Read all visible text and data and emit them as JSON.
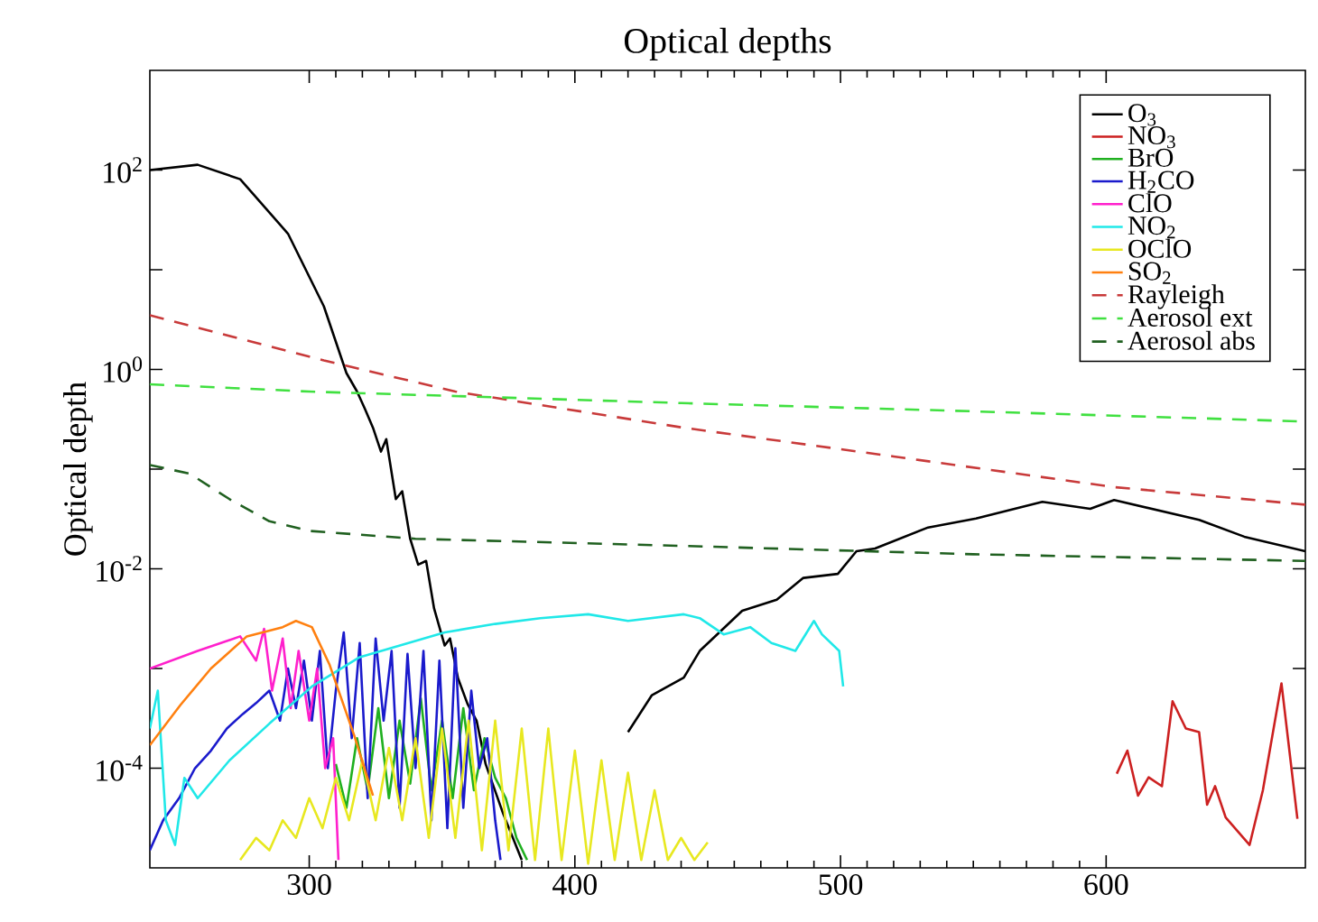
{
  "chart_data": {
    "type": "line",
    "title": "Optical depths",
    "ylabel": "Optical depth",
    "log": "y",
    "xlim": [
      240,
      675
    ],
    "xticks": [
      300,
      400,
      500,
      600
    ],
    "ylim": [
      1e-05,
      1000
    ],
    "yticks": [
      {
        "value": 0.0001,
        "label": "10$^{-4}$"
      },
      {
        "value": 0.001,
        "label": null
      },
      {
        "value": 0.01,
        "label": "10$^{-2}$"
      },
      {
        "value": 0.1,
        "label": null
      },
      {
        "value": 1,
        "label": "10$^{0}$"
      },
      {
        "value": 10,
        "label": null
      },
      {
        "value": 100,
        "label": "10$^{2}$"
      }
    ],
    "legend": "top right",
    "grid": false,
    "marker": "none",
    "series": [
      {
        "name": "O$_{3}$",
        "color": "#000000",
        "line_style": "solid",
        "x": [
          240,
          258,
          274,
          292,
          305.5,
          314,
          318,
          321,
          324,
          327,
          329,
          332.6,
          335,
          338,
          341,
          344,
          347,
          351,
          353,
          356,
          359.6,
          363,
          366.4,
          373,
          380,
          412,
          420,
          429,
          441,
          447,
          463,
          476,
          486,
          499,
          506,
          513,
          533,
          551,
          576,
          594,
          603,
          635,
          652,
          675
        ],
        "values": [
          100,
          113,
          81,
          23,
          4.3,
          0.92,
          0.6,
          0.4,
          0.26,
          0.15,
          0.2,
          0.05,
          0.06,
          0.02,
          0.011,
          0.012,
          0.004,
          0.0017,
          0.002,
          0.0008,
          0.00044,
          0.0003,
          0.00011,
          3.5e-05,
          1.2e-05,
          null,
          0.00023,
          0.00054,
          0.00081,
          0.0015,
          0.0038,
          0.0049,
          0.0081,
          0.0089,
          0.015,
          0.016,
          0.026,
          0.032,
          0.047,
          0.04,
          0.049,
          0.031,
          0.021,
          0.015
        ]
      },
      {
        "name": "NO$_{3}$",
        "color": "#cc2020",
        "line_style": "solid",
        "x": [
          604,
          608,
          612,
          616,
          621,
          625,
          630,
          635,
          638,
          641,
          645,
          654,
          659,
          666,
          672
        ],
        "values": [
          8.8e-05,
          0.00015,
          5.3e-05,
          8.1e-05,
          6.6e-05,
          0.00047,
          0.00025,
          0.00023,
          4.3e-05,
          6.6e-05,
          3.2e-05,
          1.7e-05,
          6e-05,
          0.00071,
          3.1e-05
        ]
      },
      {
        "name": "BrO",
        "color": "#20b020",
        "line_style": "solid",
        "x": [
          310,
          314,
          318,
          322,
          326,
          330,
          334,
          338,
          342,
          346,
          350,
          354,
          358,
          362,
          366,
          370,
          374,
          378,
          382
        ],
        "values": [
          0.00011,
          4e-05,
          0.0002,
          6e-05,
          0.0004,
          5e-05,
          0.0003,
          7e-05,
          0.0005,
          6e-05,
          0.0003,
          5e-05,
          0.0004,
          6e-05,
          0.0002,
          8e-05,
          5e-05,
          2e-05,
          1.2e-05
        ]
      },
      {
        "name": "H$_{2}$CO",
        "color": "#1a1acc",
        "line_style": "solid",
        "x": [
          240,
          245,
          251,
          257,
          263,
          269,
          275,
          280,
          285,
          289,
          292,
          295,
          298,
          301,
          304,
          307,
          310,
          313,
          316,
          319,
          322,
          325,
          328,
          331,
          334,
          337,
          340,
          343,
          346,
          349,
          352,
          355,
          358,
          361,
          364,
          367,
          370,
          372
        ],
        "values": [
          1.5e-05,
          3e-05,
          5e-05,
          0.0001,
          0.00015,
          0.00025,
          0.00035,
          0.00045,
          0.0006,
          0.0003,
          0.001,
          0.0004,
          0.0012,
          0.0003,
          0.0015,
          0.0001,
          0.0006,
          0.0023,
          0.0002,
          0.0018,
          5e-05,
          0.002,
          0.0003,
          0.0015,
          4e-05,
          0.0014,
          0.0001,
          0.0015,
          3e-05,
          0.0012,
          2.5e-05,
          0.0016,
          4e-05,
          0.0006,
          0.0001,
          0.0002,
          3e-05,
          1.2e-05
        ]
      },
      {
        "name": "ClO",
        "color": "#ff20cc",
        "line_style": "solid",
        "x": [
          240,
          258,
          274,
          280,
          283,
          286,
          290,
          293,
          296,
          300,
          303,
          306,
          309,
          311
        ],
        "values": [
          0.001,
          0.0015,
          0.0021,
          0.0012,
          0.0025,
          0.0006,
          0.002,
          0.0004,
          0.0015,
          0.0003,
          0.001,
          0.0001,
          0.0002,
          1.2e-05
        ]
      },
      {
        "name": "NO$_{2}$",
        "color": "#20e8e8",
        "line_style": "solid",
        "x": [
          240,
          243,
          246,
          249.5,
          253,
          258,
          270,
          285,
          301,
          319,
          351,
          370,
          387,
          405,
          420,
          441,
          447,
          456,
          466,
          474,
          483,
          490,
          493,
          499.5,
          501
        ],
        "values": [
          0.00025,
          0.0006,
          3e-05,
          1.7e-05,
          8e-05,
          5e-05,
          0.00012,
          0.00028,
          0.00066,
          0.0013,
          0.0023,
          0.0028,
          0.0032,
          0.0035,
          0.003,
          0.0035,
          0.0032,
          0.0022,
          0.0026,
          0.0018,
          0.0015,
          0.003,
          0.0022,
          0.0015,
          0.00066
        ]
      },
      {
        "name": "OClO",
        "color": "#e8e820",
        "line_style": "solid",
        "x": [
          274,
          280,
          285,
          290,
          295,
          300,
          305,
          310,
          315,
          320,
          325,
          330,
          335,
          340,
          345,
          350,
          355,
          360,
          365,
          370,
          375,
          380,
          385,
          390,
          395,
          400,
          405,
          410,
          415,
          420,
          425,
          430,
          435,
          440,
          445,
          450
        ],
        "values": [
          1.2e-05,
          2e-05,
          1.5e-05,
          3e-05,
          2e-05,
          5e-05,
          2.5e-05,
          8e-05,
          3e-05,
          0.00012,
          3e-05,
          0.00016,
          3e-05,
          0.0002,
          2e-05,
          0.00025,
          2e-05,
          0.0003,
          1.5e-05,
          0.0003,
          1.5e-05,
          0.00025,
          1.2e-05,
          0.00025,
          1.2e-05,
          0.00015,
          1.1e-05,
          0.00012,
          1.2e-05,
          9e-05,
          1.2e-05,
          6e-05,
          1.2e-05,
          2e-05,
          1.2e-05,
          1.8e-05
        ]
      },
      {
        "name": "SO$_{2}$",
        "color": "#ff8010",
        "line_style": "solid",
        "x": [
          240,
          251.5,
          263,
          276.5,
          290,
          295,
          301,
          307.6,
          317,
          324
        ],
        "values": [
          0.00017,
          0.00043,
          0.001,
          0.0021,
          0.0026,
          0.003,
          0.0026,
          0.0011,
          0.00021,
          5.3e-05
        ]
      },
      {
        "name": "Rayleigh",
        "color": "#c83a3a",
        "line_style": "dashed",
        "x": [
          240,
          305.5,
          355,
          441,
          520,
          603,
          675
        ],
        "values": [
          3.5,
          1.23,
          0.6,
          0.26,
          0.134,
          0.066,
          0.044
        ]
      },
      {
        "name": "Aerosol ext",
        "color": "#40e040",
        "line_style": "dashed",
        "x": [
          240,
          300,
          440,
          550,
          675
        ],
        "values": [
          0.71,
          0.6,
          0.46,
          0.38,
          0.3
        ]
      },
      {
        "name": "Aerosol abs",
        "color": "#206020",
        "line_style": "dashed",
        "x": [
          240,
          255,
          270,
          285,
          300,
          340,
          440,
          550,
          675
        ],
        "values": [
          0.11,
          0.09,
          0.05,
          0.03,
          0.024,
          0.02,
          0.017,
          0.014,
          0.012
        ]
      }
    ]
  }
}
